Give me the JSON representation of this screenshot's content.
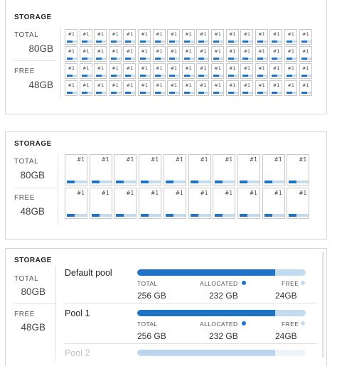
{
  "cards": [
    {
      "title": "STORAGE",
      "total_label": "TOTAL",
      "total_value": "80GB",
      "free_label": "FREE",
      "free_value": "48GB",
      "disk_label": "#1",
      "disk_usage_fraction": 0.55
    },
    {
      "title": "STORAGE",
      "total_label": "TOTAL",
      "total_value": "80GB",
      "free_label": "FREE",
      "free_value": "48GB",
      "disk_label": "#1",
      "disk_usage_fraction": 0.4
    },
    {
      "title": "STORAGE",
      "total_label": "TOTAL",
      "total_value": "80GB",
      "free_label": "FREE",
      "free_value": "48GB",
      "pools": [
        {
          "name": "Default pool",
          "total_label": "TOTAL",
          "total_value": "256 GB",
          "allocated_label": "ALLOCATED",
          "allocated_value": "232 GB",
          "free_label": "FREE",
          "free_value": "24GB",
          "allocated_fraction": 0.82
        },
        {
          "name": "Pool 1",
          "total_label": "TOTAL",
          "total_value": "256 GB",
          "allocated_label": "ALLOCATED",
          "allocated_value": "232 GB",
          "free_label": "FREE",
          "free_value": "24GB",
          "allocated_fraction": 0.82
        },
        {
          "name": "Pool 2",
          "allocated_fraction": 0.82
        }
      ]
    }
  ],
  "colors": {
    "allocated": "#1f73c6",
    "free": "#c3dbef",
    "border": "#d6d6d6"
  }
}
